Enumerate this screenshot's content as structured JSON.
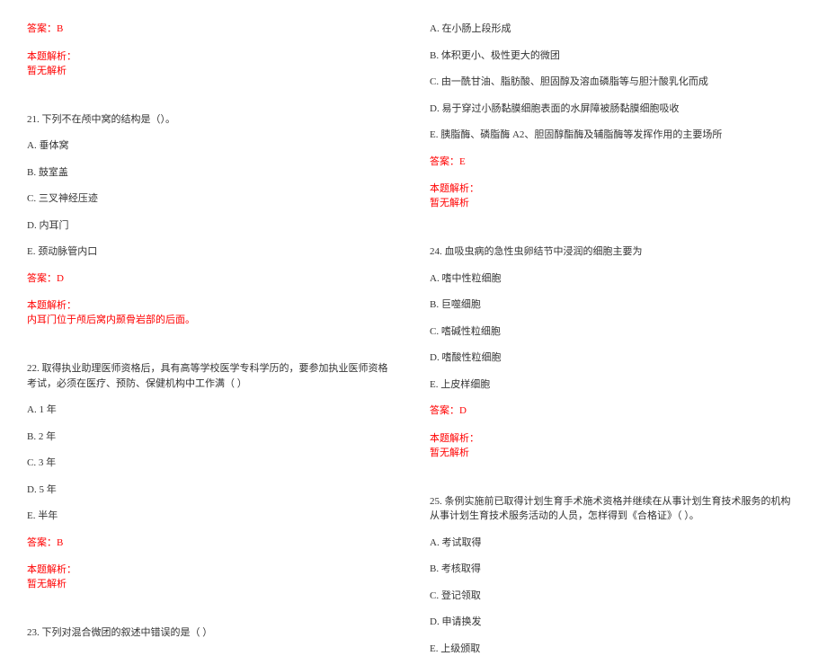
{
  "left": {
    "answer20": "答案：B",
    "explain_label": "本题解析：",
    "no_explain": "暂无解析",
    "q21": {
      "stem": "21. 下列不在颅中窝的结构是（）。",
      "A": "A. 垂体窝",
      "B": "B. 鼓室盖",
      "C": "C. 三叉神经压迹",
      "D": "D. 内耳门",
      "E": "E. 颈动脉管内口",
      "answer": "答案：D",
      "explain": "内耳门位于颅后窝内颞骨岩部的后面。"
    },
    "q22": {
      "stem": "22. 取得执业助理医师资格后，具有高等学校医学专科学历的，要参加执业医师资格考试，必须在医疗、预防、保健机构中工作满（  ）",
      "A": "A. 1 年",
      "B": "B. 2 年",
      "C": "C. 3 年",
      "D": "D. 5 年",
      "E": "E. 半年",
      "answer": "答案：B"
    },
    "q23": {
      "stem": "23. 下列对混合微团的叙述中错误的是（    ）"
    }
  },
  "right": {
    "q23opts": {
      "A": "A. 在小肠上段形成",
      "B": "B. 体积更小、极性更大的微团",
      "C": "C. 由一酰甘油、脂肪酸、胆固醇及溶血磷脂等与胆汁酸乳化而成",
      "D": "D. 易于穿过小肠黏膜细胞表面的水屏障被肠黏膜细胞吸收",
      "E": "E. 胰脂酶、磷脂酶 A2、胆固醇酯酶及辅脂酶等发挥作用的主要场所",
      "answer": "答案：E"
    },
    "q24": {
      "stem": "24. 血吸虫病的急性虫卵结节中浸润的细胞主要为",
      "A": "A. 嗜中性粒细胞",
      "B": "B. 巨噬细胞",
      "C": "C. 嗜碱性粒细胞",
      "D": "D. 嗜酸性粒细胞",
      "E": "E. 上皮样细胞",
      "answer": "答案：D"
    },
    "q25": {
      "stem": "25. 条例实施前已取得计划生育手术施术资格并继续在从事计划生育技术服务的机构从事计划生育技术服务活动的人员，怎样得到《合格证》（  ）。",
      "A": "A. 考试取得",
      "B": "B. 考核取得",
      "C": "C. 登记领取",
      "D": "D. 申请换发",
      "E": "E. 上级颁取"
    },
    "explain_label": "本题解析：",
    "no_explain": "暂无解析"
  }
}
